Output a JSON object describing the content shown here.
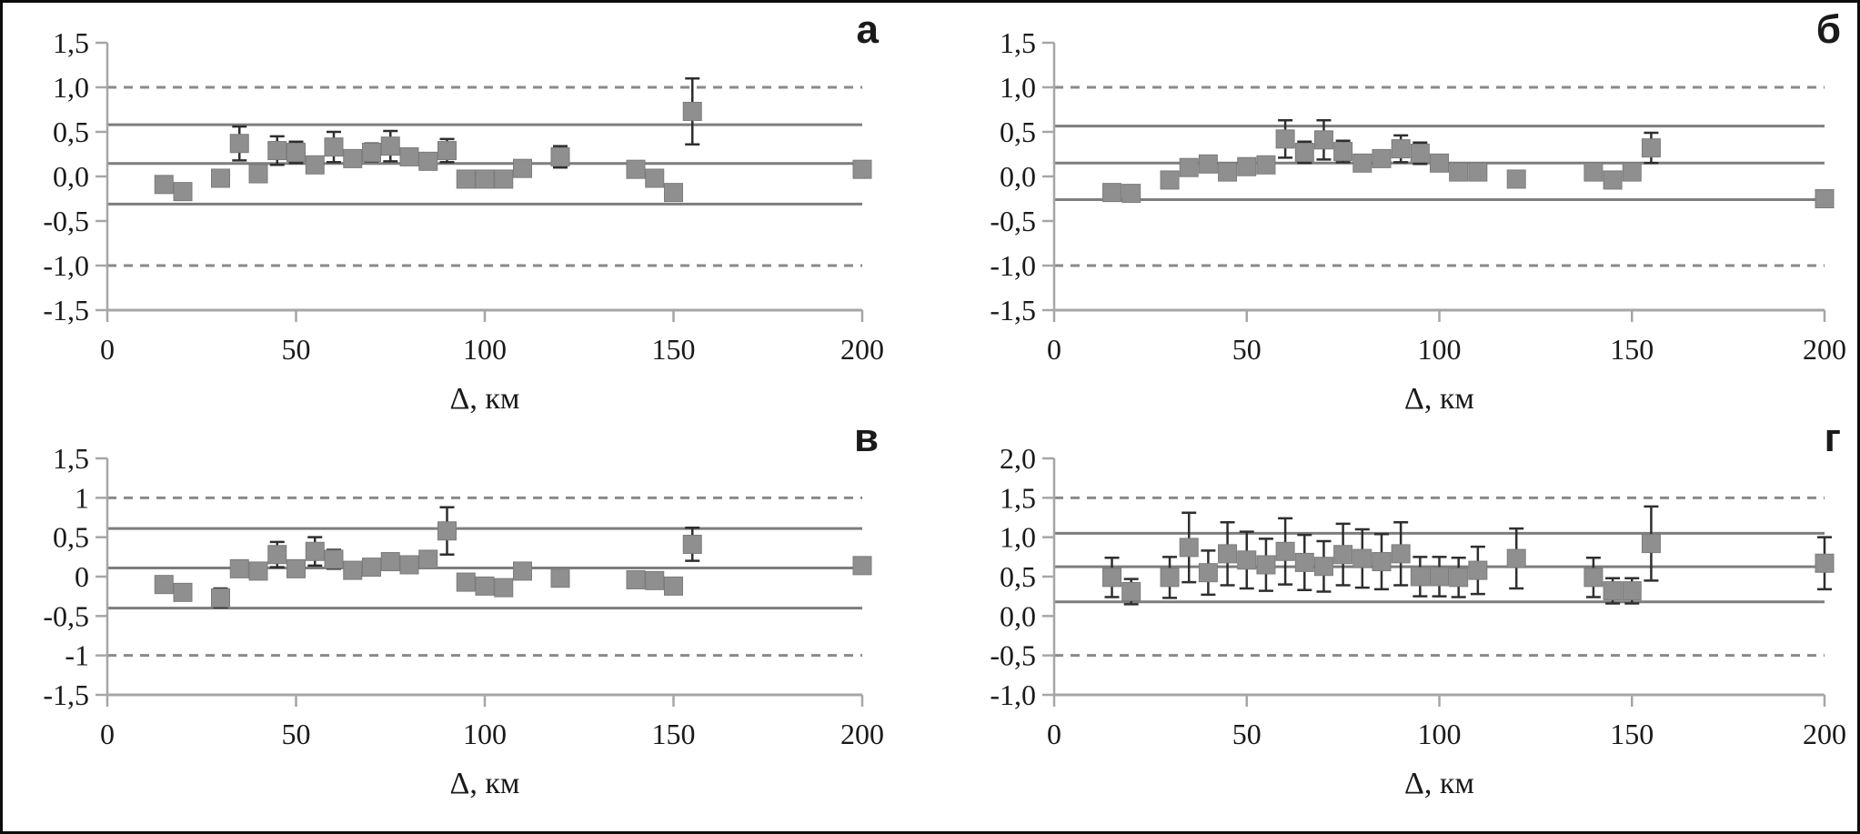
{
  "figure": {
    "xlabel": "Δ, км",
    "xtick_labels": [
      "0",
      "50",
      "100",
      "150",
      "200"
    ],
    "xtick_values": [
      0,
      50,
      100,
      150,
      200
    ]
  },
  "styles": {
    "background": "#ffffff",
    "frame_border": "#0c0c0c",
    "marker_color": "#8f8f8f",
    "marker_edge": "#7c7c7c",
    "errorbar_color": "#2e2e2e",
    "solid_line_color": "#7d7d7d",
    "dashed_line_color": "#8a8a8a",
    "axis_color": "#a6a6a6",
    "text_color": "#1a1a1a"
  },
  "chart_data": [
    {
      "type": "scatter",
      "panel_label": "а",
      "xlabel": "Δ, км",
      "xlim": [
        0,
        200
      ],
      "xticks": [
        0,
        50,
        100,
        150,
        200
      ],
      "xtick_labels": [
        "0",
        "50",
        "100",
        "150",
        "200"
      ],
      "ylim": [
        -1.5,
        1.5
      ],
      "ytick_values": [
        1.5,
        1.0,
        0.5,
        0.0,
        -0.5,
        -1.0,
        -1.5
      ],
      "ytick_labels": [
        "1,5",
        "1,0",
        "0,5",
        "0,0",
        "-0,5",
        "-1,0",
        "-1,5"
      ],
      "dashed_lines": [
        1.0,
        -1.0
      ],
      "solid_lines": [
        0.58,
        0.145,
        -0.31
      ],
      "x": [
        15,
        20,
        30,
        35,
        40,
        45,
        50,
        55,
        60,
        65,
        70,
        75,
        80,
        85,
        90,
        95,
        100,
        105,
        110,
        120,
        140,
        145,
        150,
        155,
        200
      ],
      "y": [
        -0.09,
        -0.17,
        -0.02,
        0.37,
        0.03,
        0.29,
        0.27,
        0.13,
        0.33,
        0.2,
        0.27,
        0.34,
        0.22,
        0.17,
        0.29,
        -0.03,
        -0.03,
        -0.03,
        0.09,
        0.22,
        0.08,
        -0.02,
        -0.18,
        0.73,
        0.08
      ],
      "err": [
        0,
        0,
        0,
        0.19,
        0,
        0.16,
        0.12,
        0,
        0.17,
        0.08,
        0.1,
        0.17,
        0.09,
        0.06,
        0.13,
        0,
        0,
        0,
        0,
        0.12,
        0,
        0,
        0,
        0.37,
        0
      ]
    },
    {
      "type": "scatter",
      "panel_label": "б",
      "xlabel": "Δ, км",
      "xlim": [
        0,
        200
      ],
      "xticks": [
        0,
        50,
        100,
        150,
        200
      ],
      "xtick_labels": [
        "0",
        "50",
        "100",
        "150",
        "200"
      ],
      "ylim": [
        -1.5,
        1.5
      ],
      "ytick_values": [
        1.5,
        1.0,
        0.5,
        0.0,
        -0.5,
        -1.0,
        -1.5
      ],
      "ytick_labels": [
        "1,5",
        "1,0",
        "0,5",
        "0,0",
        "-0,5",
        "-1,0",
        "-1,5"
      ],
      "dashed_lines": [
        1.0,
        -1.0
      ],
      "solid_lines": [
        0.565,
        0.15,
        -0.26
      ],
      "x": [
        15,
        20,
        30,
        35,
        40,
        45,
        50,
        55,
        60,
        65,
        70,
        75,
        80,
        85,
        90,
        95,
        100,
        105,
        110,
        120,
        140,
        145,
        150,
        155,
        200
      ],
      "y": [
        -0.18,
        -0.19,
        -0.04,
        0.1,
        0.14,
        0.05,
        0.11,
        0.13,
        0.42,
        0.27,
        0.41,
        0.28,
        0.15,
        0.2,
        0.31,
        0.26,
        0.15,
        0.05,
        0.05,
        -0.03,
        0.05,
        -0.04,
        0.05,
        0.32,
        -0.25
      ],
      "err": [
        0,
        0,
        0,
        0,
        0,
        0,
        0,
        0,
        0.21,
        0.12,
        0.22,
        0.12,
        0,
        0.06,
        0.15,
        0.12,
        0,
        0,
        0,
        0,
        0,
        0,
        0,
        0.17,
        0.09
      ]
    },
    {
      "type": "scatter",
      "panel_label": "в",
      "xlabel": "Δ, км",
      "xlim": [
        0,
        200
      ],
      "xticks": [
        0,
        50,
        100,
        150,
        200
      ],
      "xtick_labels": [
        "0",
        "50",
        "100",
        "150",
        "200"
      ],
      "ylim": [
        -1.5,
        1.5
      ],
      "ytick_values": [
        1.5,
        1.0,
        0.5,
        0.0,
        -0.5,
        -1.0,
        -1.5
      ],
      "ytick_labels": [
        "1,5",
        "1",
        "0,5",
        "0",
        "-0,5",
        "-1",
        "-1,5"
      ],
      "dashed_lines": [
        1.0,
        -1.0
      ],
      "solid_lines": [
        0.61,
        0.11,
        -0.4
      ],
      "x": [
        15,
        20,
        30,
        35,
        40,
        45,
        50,
        55,
        60,
        65,
        70,
        75,
        80,
        85,
        90,
        95,
        100,
        105,
        110,
        120,
        140,
        145,
        150,
        155,
        200
      ],
      "y": [
        -0.1,
        -0.2,
        -0.27,
        0.1,
        0.07,
        0.28,
        0.1,
        0.32,
        0.22,
        0.08,
        0.12,
        0.19,
        0.15,
        0.22,
        0.58,
        -0.07,
        -0.12,
        -0.14,
        0.07,
        -0.02,
        -0.04,
        -0.05,
        -0.12,
        0.41,
        0.14
      ],
      "err": [
        0,
        0,
        0.12,
        0,
        0,
        0.16,
        0,
        0.18,
        0.12,
        0,
        0,
        0.09,
        0,
        0.06,
        0.3,
        0,
        0,
        0,
        0,
        0,
        0,
        0,
        0,
        0.21,
        0
      ]
    },
    {
      "type": "scatter",
      "panel_label": "г",
      "xlabel": "Δ, км",
      "xlim": [
        0,
        200
      ],
      "xticks": [
        0,
        50,
        100,
        150,
        200
      ],
      "xtick_labels": [
        "0",
        "50",
        "100",
        "150",
        "200"
      ],
      "ylim": [
        -1.0,
        2.0
      ],
      "ytick_values": [
        2.0,
        1.5,
        1.0,
        0.5,
        0.0,
        -0.5,
        -1.0
      ],
      "ytick_labels": [
        "2,0",
        "1,5",
        "1,0",
        "0,5",
        "0,0",
        "-0,5",
        "-1,0"
      ],
      "dashed_lines": [
        1.5,
        -0.5
      ],
      "solid_lines": [
        1.05,
        0.625,
        0.18
      ],
      "x": [
        15,
        20,
        30,
        35,
        40,
        45,
        50,
        55,
        60,
        65,
        70,
        75,
        80,
        85,
        90,
        95,
        100,
        105,
        110,
        120,
        140,
        145,
        150,
        155,
        200
      ],
      "y": [
        0.49,
        0.31,
        0.49,
        0.87,
        0.55,
        0.79,
        0.71,
        0.65,
        0.82,
        0.68,
        0.63,
        0.78,
        0.73,
        0.69,
        0.79,
        0.5,
        0.5,
        0.49,
        0.58,
        0.73,
        0.49,
        0.32,
        0.32,
        0.92,
        0.67
      ],
      "err": [
        0.25,
        0.16,
        0.26,
        0.44,
        0.28,
        0.4,
        0.36,
        0.33,
        0.42,
        0.35,
        0.32,
        0.39,
        0.37,
        0.35,
        0.4,
        0.25,
        0.25,
        0.25,
        0.3,
        0.38,
        0.25,
        0.16,
        0.16,
        0.47,
        0.33
      ]
    }
  ]
}
